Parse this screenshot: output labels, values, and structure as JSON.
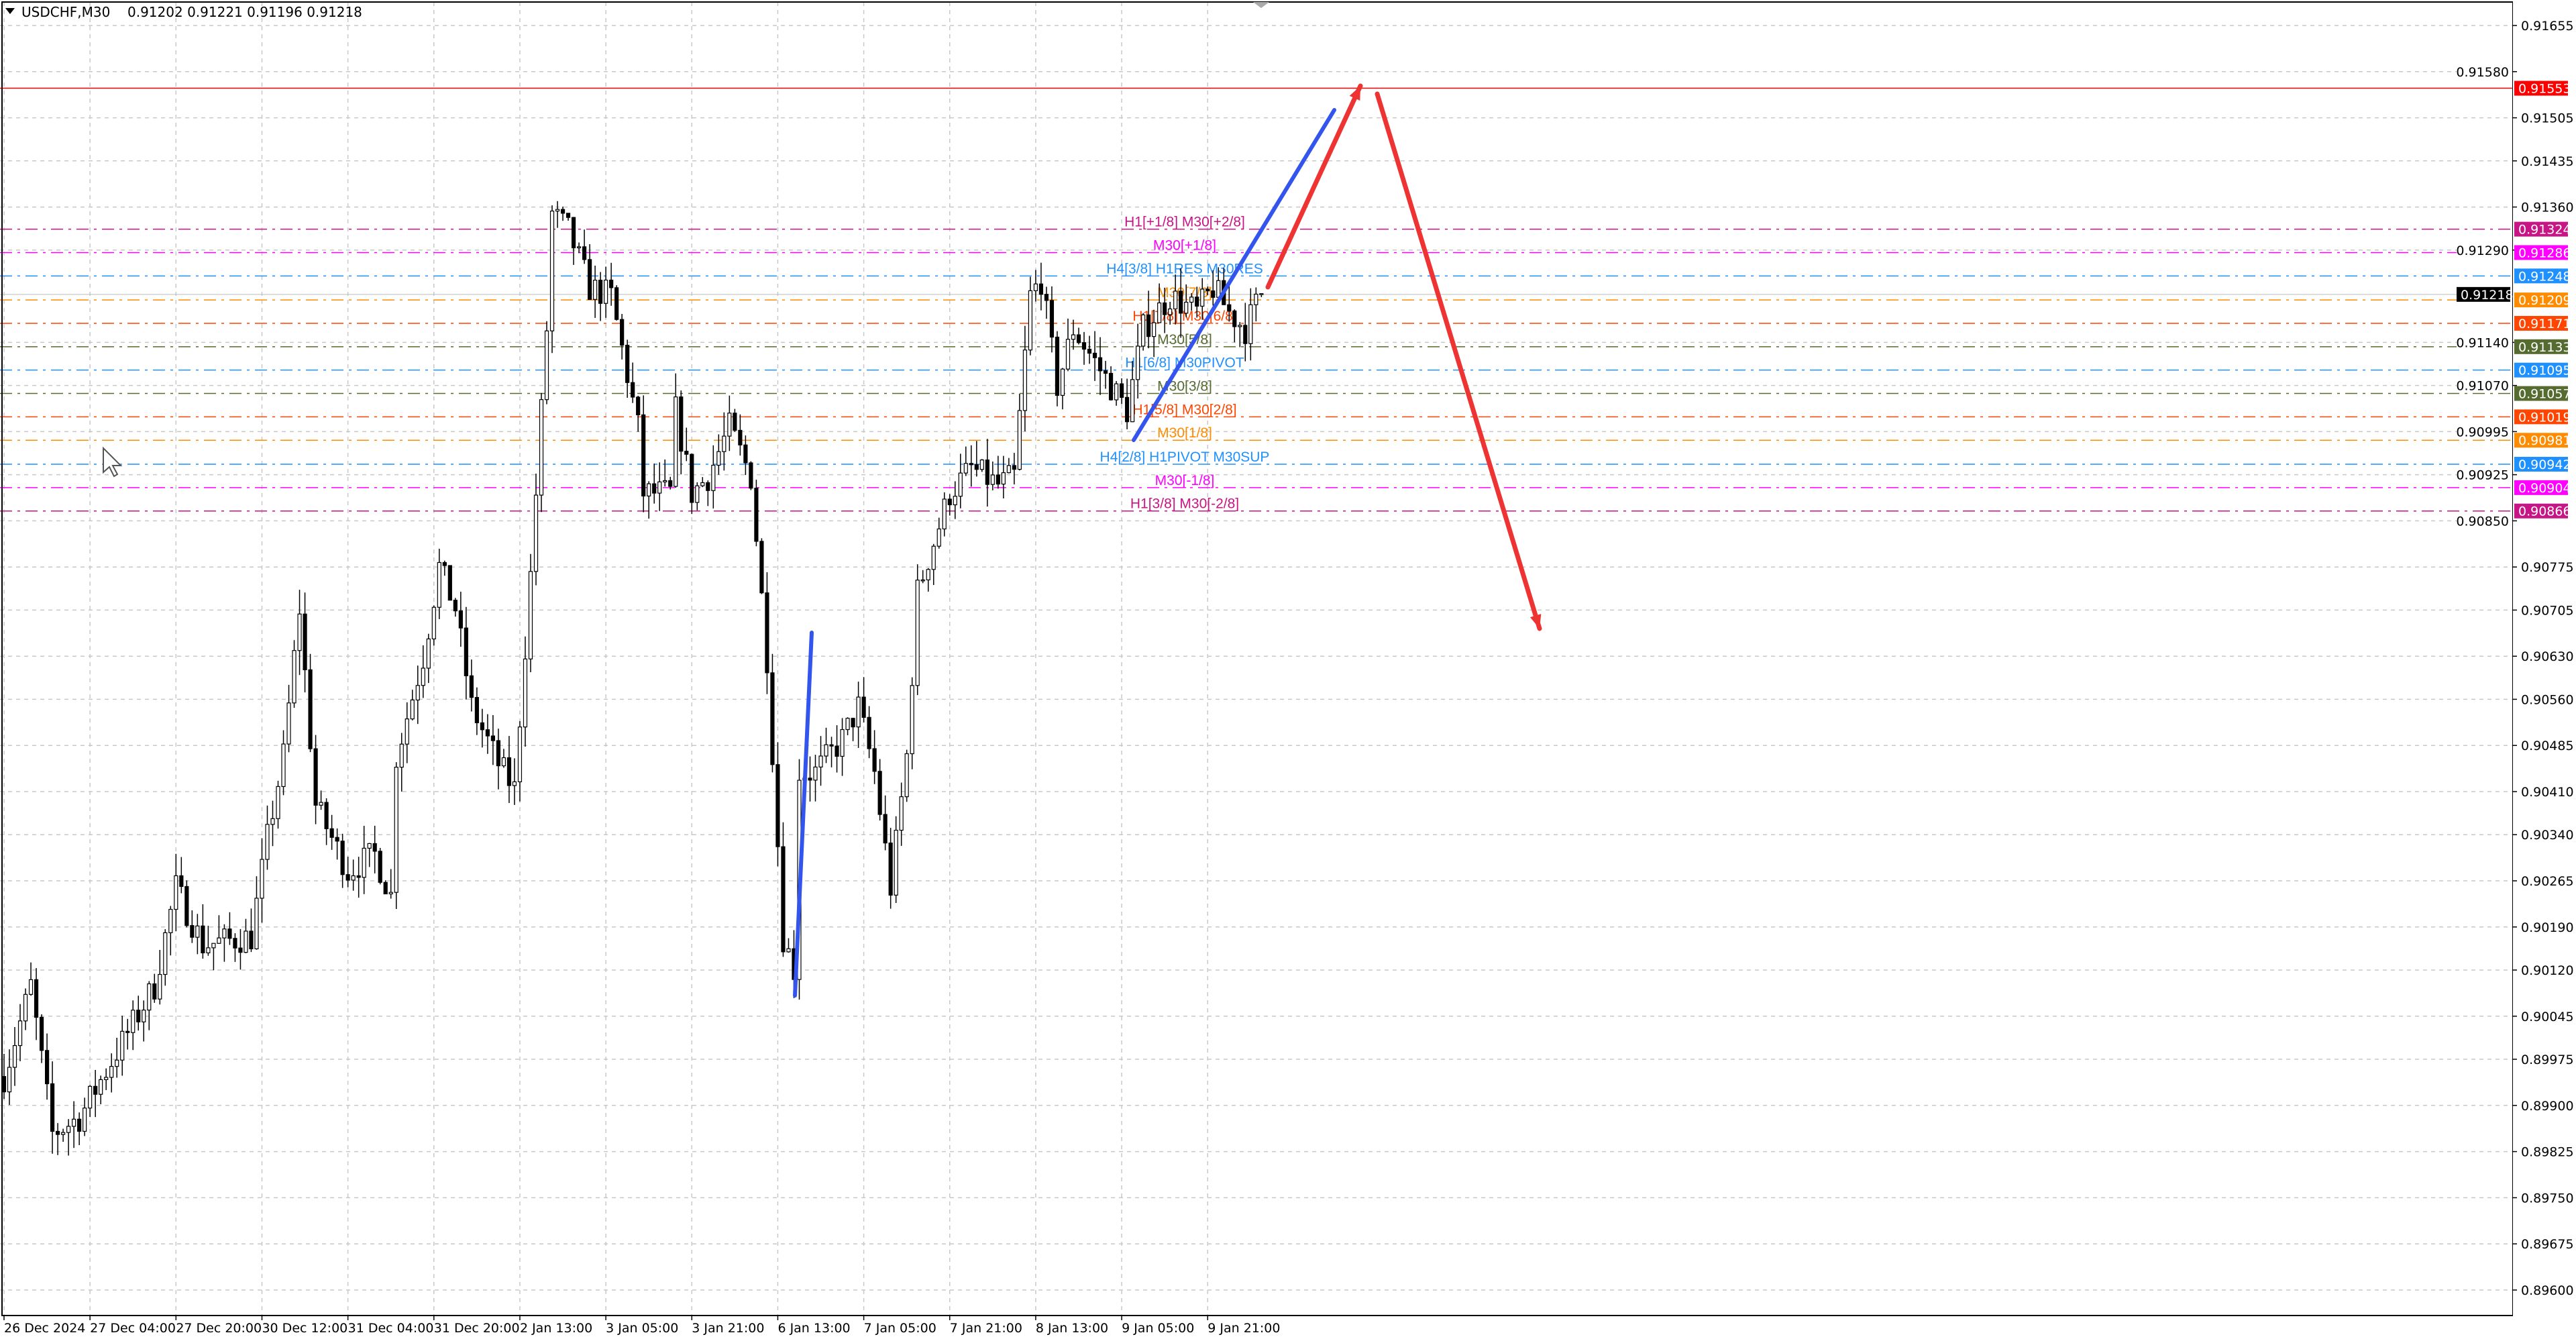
{
  "header": {
    "symbol": "USDCHF,M30",
    "ohlc": "0.91202 0.91221 0.91196 0.91218"
  },
  "price_axis": {
    "ticks": [
      "0.91655",
      "0.91580",
      "0.91505",
      "0.91435",
      "0.91360",
      "0.91290",
      "0.91140",
      "0.91070",
      "0.90995",
      "0.90925",
      "0.90850",
      "0.90775",
      "0.90705",
      "0.90630",
      "0.90560",
      "0.90485",
      "0.90410",
      "0.90340",
      "0.90265",
      "0.90190",
      "0.90120",
      "0.90045",
      "0.89975",
      "0.89900",
      "0.89825",
      "0.89750",
      "0.89675",
      "0.89600"
    ],
    "current_price": {
      "value": "0.91218",
      "color": "#000000"
    },
    "alert_line": {
      "value": "0.91553",
      "color": "#ff0000"
    }
  },
  "time_axis": {
    "labels": [
      "26 Dec 2024",
      "27 Dec 04:00",
      "27 Dec 20:00",
      "30 Dec 12:00",
      "31 Dec 04:00",
      "31 Dec 20:00",
      "2 Jan 13:00",
      "3 Jan 05:00",
      "3 Jan 21:00",
      "6 Jan 13:00",
      "7 Jan 05:00",
      "7 Jan 21:00",
      "8 Jan 13:00",
      "9 Jan 05:00",
      "9 Jan 21:00"
    ]
  },
  "levels": [
    {
      "price": "0.91324",
      "label": "H1[+1/8] M30[+2/8]",
      "color": "#c71585"
    },
    {
      "price": "0.91286",
      "label": "M30[+1/8]",
      "color": "#ff00ff"
    },
    {
      "price": "0.91248",
      "label": "H4[3/8] H1RES M30RES",
      "color": "#1e90ff"
    },
    {
      "price": "0.91209",
      "label": "M30[7/8]",
      "color": "#ff8c00"
    },
    {
      "price": "0.91171",
      "label": "H1[7/8] M30[6/8]",
      "color": "#ff4500"
    },
    {
      "price": "0.91133",
      "label": "M30[5/8]",
      "color": "#556b2f"
    },
    {
      "price": "0.91095",
      "label": "H1[6/8] M30PIVOT",
      "color": "#1e90ff"
    },
    {
      "price": "0.91057",
      "label": "M30[3/8]",
      "color": "#556b2f"
    },
    {
      "price": "0.91019",
      "label": "H1[5/8] M30[2/8]",
      "color": "#ff4500"
    },
    {
      "price": "0.90981",
      "label": "M30[1/8]",
      "color": "#ff8c00"
    },
    {
      "price": "0.90942",
      "label": "H4[2/8] H1PIVOT M30SUP",
      "color": "#1e90ff"
    },
    {
      "price": "0.90904",
      "label": "M30[-1/8]",
      "color": "#ff00ff"
    },
    {
      "price": "0.90866",
      "label": "H1[3/8] M30[-2/8]",
      "color": "#c71585"
    }
  ],
  "price_path": [
    [
      0,
      0.89947
    ],
    [
      5,
      0.90094
    ],
    [
      9,
      0.89854
    ],
    [
      14,
      0.8988
    ],
    [
      21,
      0.89987
    ],
    [
      28,
      0.90094
    ],
    [
      32,
      0.90254
    ],
    [
      37,
      0.90161
    ],
    [
      46,
      0.90174
    ],
    [
      49,
      0.90334
    ],
    [
      52,
      0.90468
    ],
    [
      55,
      0.90708
    ],
    [
      58,
      0.90388
    ],
    [
      64,
      0.90281
    ],
    [
      69,
      0.90308
    ],
    [
      72,
      0.90241
    ],
    [
      73,
      0.90468
    ],
    [
      78,
      0.90628
    ],
    [
      81,
      0.90775
    ],
    [
      84,
      0.90708
    ],
    [
      87,
      0.90548
    ],
    [
      92,
      0.90455
    ],
    [
      95,
      0.90414
    ],
    [
      98,
      0.90761
    ],
    [
      101,
      0.91162
    ],
    [
      102,
      0.91349
    ],
    [
      105,
      0.91322
    ],
    [
      109,
      0.91229
    ],
    [
      113,
      0.91215
    ],
    [
      118,
      0.91002
    ],
    [
      119,
      0.90895
    ],
    [
      124,
      0.90895
    ],
    [
      125,
      0.91029
    ],
    [
      128,
      0.90895
    ],
    [
      131,
      0.90922
    ],
    [
      135,
      0.91002
    ],
    [
      139,
      0.90922
    ],
    [
      142,
      0.90628
    ],
    [
      145,
      0.90174
    ],
    [
      147,
      0.90121
    ],
    [
      148,
      0.90441
    ],
    [
      151,
      0.90441
    ],
    [
      156,
      0.90495
    ],
    [
      159,
      0.90548
    ],
    [
      162,
      0.90441
    ],
    [
      165,
      0.90254
    ],
    [
      168,
      0.90468
    ],
    [
      170,
      0.90735
    ],
    [
      173,
      0.90815
    ],
    [
      176,
      0.90895
    ],
    [
      180,
      0.90935
    ],
    [
      185,
      0.90908
    ],
    [
      188,
      0.90922
    ],
    [
      191,
      0.91215
    ],
    [
      193,
      0.91242
    ],
    [
      196,
      0.91069
    ],
    [
      199,
      0.91162
    ],
    [
      203,
      0.91109
    ],
    [
      209,
      0.91029
    ],
    [
      212,
      0.91162
    ],
    [
      217,
      0.91215
    ],
    [
      222,
      0.91189
    ],
    [
      225,
      0.91229
    ],
    [
      228,
      0.91189
    ],
    [
      231,
      0.91162
    ],
    [
      234,
      0.91221
    ]
  ],
  "colors": {
    "bull_body": "#ffffff",
    "bear_body": "#000000",
    "candle_outline": "#000000",
    "trend_blue": "#3355ee",
    "forecast_red": "#ee3333",
    "grid": "#c8c8c8"
  }
}
